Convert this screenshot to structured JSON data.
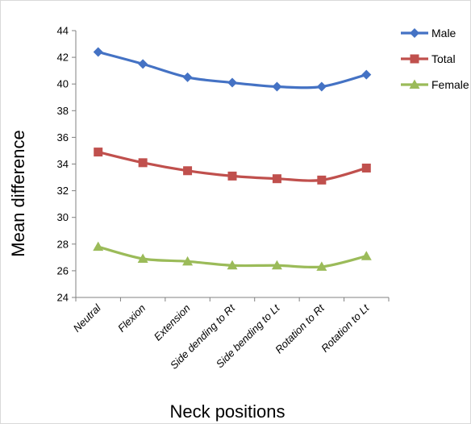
{
  "chart_data": {
    "type": "line",
    "title": "",
    "xlabel": "Neck positions",
    "ylabel": "Mean difference",
    "categories": [
      "Neutral",
      "Flexion",
      "Extension",
      "Side dending to Rt",
      "Side bending to Lt",
      "Rotation to Rt",
      "Rotation to Lt"
    ],
    "ylim": [
      24,
      44
    ],
    "yticks": [
      24,
      26,
      28,
      30,
      32,
      34,
      36,
      38,
      40,
      42,
      44
    ],
    "grid": false,
    "legend_position": "top-right",
    "series": [
      {
        "name": "Male",
        "color": "#4472c4",
        "marker": "diamond",
        "values": [
          42.4,
          41.5,
          40.5,
          40.1,
          39.8,
          39.8,
          40.7
        ]
      },
      {
        "name": "Total",
        "color": "#c0504d",
        "marker": "square",
        "values": [
          34.9,
          34.1,
          33.5,
          33.1,
          32.9,
          32.8,
          33.7
        ]
      },
      {
        "name": "Female",
        "color": "#9bbb59",
        "marker": "triangle",
        "values": [
          27.8,
          26.9,
          26.7,
          26.4,
          26.4,
          26.3,
          27.1
        ]
      }
    ]
  }
}
